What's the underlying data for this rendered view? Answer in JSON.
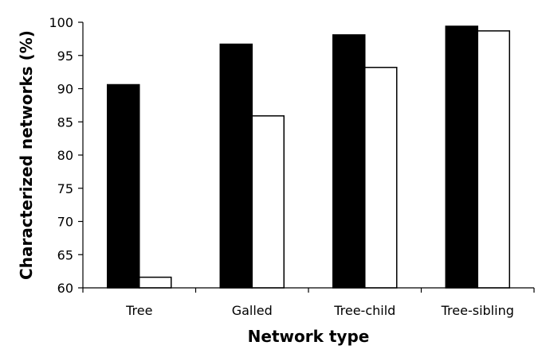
{
  "chart_data": {
    "type": "bar",
    "categories": [
      "Tree",
      "Galled",
      "Tree-child",
      "Tree-sibling"
    ],
    "series": [
      {
        "values": [
          90.6,
          96.7,
          98.1,
          99.4
        ],
        "color": "#000000"
      },
      {
        "values": [
          61.6,
          85.9,
          93.2,
          98.7
        ],
        "color": "#ffffff"
      }
    ],
    "xlabel": "Network type",
    "ylabel": "Characterized networks (%)",
    "ylim": [
      60,
      100
    ],
    "yticks": [
      "60",
      "65",
      "70",
      "75",
      "80",
      "85",
      "90",
      "95",
      "100"
    ],
    "grid": false,
    "legend": false
  }
}
